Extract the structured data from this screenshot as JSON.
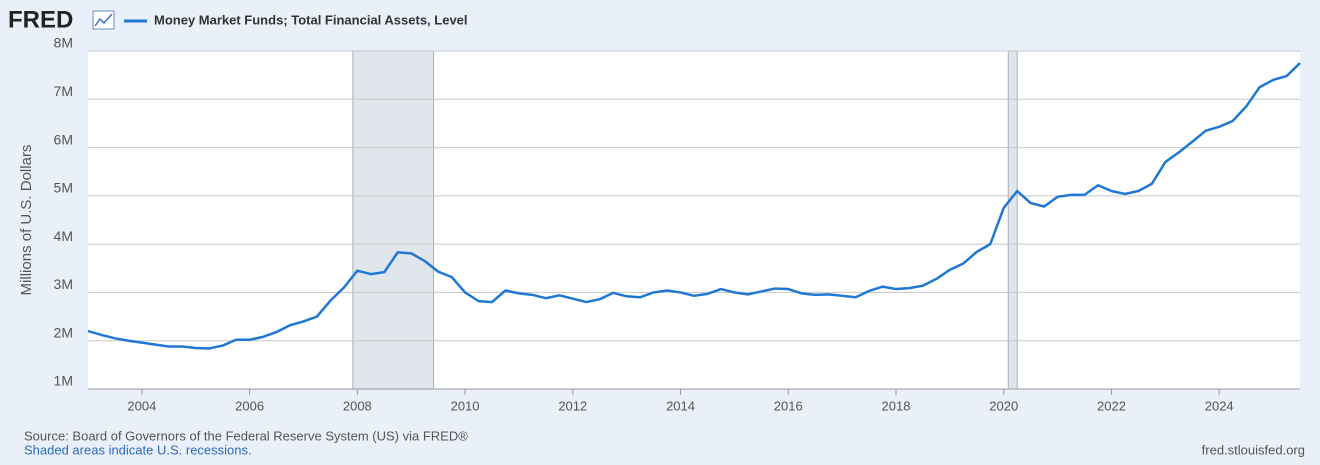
{
  "logo": "FRED",
  "chart_data": {
    "type": "line",
    "y_label": "Millions of U.S. Dollars",
    "source": "Source: Board of Governors of the Federal Reserve System (US) via FRED®",
    "note": "Shaded areas indicate U.S. recessions.",
    "site": "fred.stlouisfed.org",
    "x": [
      2003,
      2003.25,
      2003.5,
      2003.75,
      2004,
      2004.25,
      2004.5,
      2004.75,
      2005,
      2005.25,
      2005.5,
      2005.75,
      2006,
      2006.25,
      2006.5,
      2006.75,
      2007,
      2007.25,
      2007.5,
      2007.75,
      2008,
      2008.25,
      2008.5,
      2008.75,
      2009,
      2009.25,
      2009.5,
      2009.75,
      2010,
      2010.25,
      2010.5,
      2010.75,
      2011,
      2011.25,
      2011.5,
      2011.75,
      2012,
      2012.25,
      2012.5,
      2012.75,
      2013,
      2013.25,
      2013.5,
      2013.75,
      2014,
      2014.25,
      2014.5,
      2014.75,
      2015,
      2015.25,
      2015.5,
      2015.75,
      2016,
      2016.25,
      2016.5,
      2016.75,
      2017,
      2017.25,
      2017.5,
      2017.75,
      2018,
      2018.25,
      2018.5,
      2018.75,
      2019,
      2019.25,
      2019.5,
      2019.75,
      2020,
      2020.25,
      2020.5,
      2020.75,
      2021,
      2021.25,
      2021.5,
      2021.75,
      2022,
      2022.25,
      2022.5,
      2022.75,
      2023,
      2023.25,
      2023.5,
      2023.75,
      2024,
      2024.25,
      2024.5,
      2024.75,
      2025,
      2025.25,
      2025.5
    ],
    "series": [
      {
        "name": "Money Market Funds; Total Financial Assets, Level",
        "color": "#1f78d4",
        "values": [
          2200000,
          2120000,
          2050000,
          2000000,
          1960000,
          1920000,
          1880000,
          1880000,
          1850000,
          1840000,
          1900000,
          2020000,
          2020000,
          2080000,
          2180000,
          2320000,
          2400000,
          2500000,
          2830000,
          3100000,
          3450000,
          3380000,
          3420000,
          3830000,
          3810000,
          3650000,
          3430000,
          3320000,
          3000000,
          2820000,
          2800000,
          3040000,
          2980000,
          2950000,
          2880000,
          2940000,
          2870000,
          2800000,
          2860000,
          2990000,
          2920000,
          2900000,
          3000000,
          3040000,
          3000000,
          2930000,
          2970000,
          3070000,
          3000000,
          2960000,
          3020000,
          3080000,
          3070000,
          2980000,
          2950000,
          2960000,
          2930000,
          2900000,
          3030000,
          3120000,
          3070000,
          3090000,
          3140000,
          3280000,
          3470000,
          3600000,
          3840000,
          4000000,
          4750000,
          5100000,
          4850000,
          4780000,
          4980000,
          5020000,
          5020000,
          5220000,
          5100000,
          5040000,
          5100000,
          5250000,
          5700000,
          5900000,
          6120000,
          6350000,
          6430000,
          6550000,
          6850000,
          7250000,
          7400000,
          7480000,
          7750000
        ]
      }
    ],
    "recessions": [
      [
        2007.917,
        2009.417
      ],
      [
        2020.083,
        2020.25
      ]
    ],
    "xlim": [
      2003,
      2025.5
    ],
    "xticks": [
      2004,
      2006,
      2008,
      2010,
      2012,
      2014,
      2016,
      2018,
      2020,
      2022,
      2024
    ],
    "ylim": [
      1000000,
      8000000
    ],
    "yticks": [
      {
        "value": 1000000,
        "label": "1M"
      },
      {
        "value": 2000000,
        "label": "2M"
      },
      {
        "value": 3000000,
        "label": "3M"
      },
      {
        "value": 4000000,
        "label": "4M"
      },
      {
        "value": 5000000,
        "label": "5M"
      },
      {
        "value": 6000000,
        "label": "6M"
      },
      {
        "value": 7000000,
        "label": "7M"
      },
      {
        "value": 8000000,
        "label": "8M"
      }
    ],
    "grid": true
  }
}
